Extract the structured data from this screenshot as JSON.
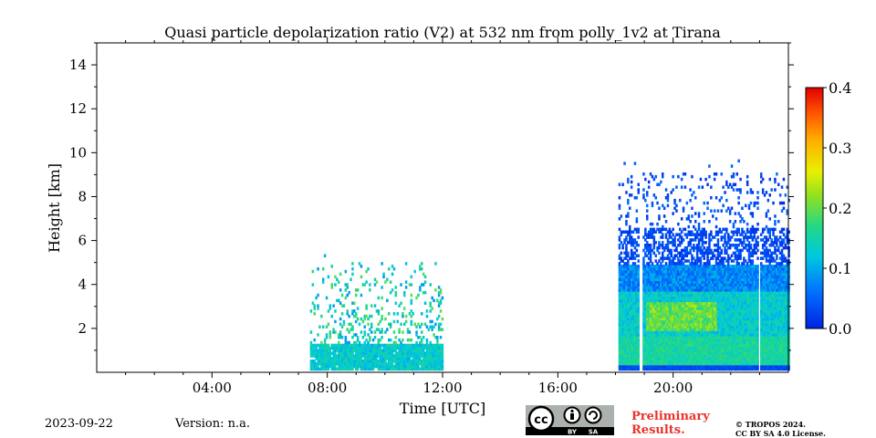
{
  "chart_data": {
    "type": "heatmap",
    "title": "Quasi particle depolarization ratio (V2) at 532 nm from polly_1v2 at Tirana",
    "xlabel": "Time [UTC]",
    "ylabel": "Height [km]",
    "xlim": [
      0,
      24
    ],
    "ylim": [
      0,
      15
    ],
    "x_ticks": [
      4,
      8,
      12,
      16,
      20
    ],
    "x_tick_labels": [
      "04:00",
      "08:00",
      "12:00",
      "16:00",
      "20:00"
    ],
    "y_ticks": [
      2,
      4,
      6,
      8,
      10,
      12,
      14
    ],
    "y_tick_labels": [
      "2",
      "4",
      "6",
      "8",
      "10",
      "12",
      "14"
    ],
    "colorbar": {
      "min": 0.0,
      "max": 0.4,
      "ticks": [
        0.0,
        0.1,
        0.2,
        0.3,
        0.4
      ],
      "tick_labels": [
        "0.0",
        "0.1",
        "0.2",
        "0.3",
        "0.4"
      ],
      "colormap": "jet"
    },
    "measurement_blocks": [
      {
        "start_hour": 7.4,
        "end_hour": 12.0,
        "dense_top_km": 1.2,
        "sparse_top_km": 5.0,
        "typical_value": 0.12
      },
      {
        "start_hour": 18.1,
        "end_hour": 24.0,
        "dense_top_km": 4.8,
        "sparse_top_km": 9.0,
        "typical_value": 0.1,
        "gaps_hour": [
          18.85,
          22.95
        ]
      }
    ],
    "grid": false
  },
  "footer": {
    "date": "2023-09-22",
    "version": "Version: n.a.",
    "preliminary_line1": "Preliminary",
    "preliminary_line2": "Results.",
    "copyright_line1": "© TROPOS 2024.",
    "copyright_line2": "CC BY SA 4.0 License.",
    "cc_badge": "cc-by-sa-icon"
  }
}
